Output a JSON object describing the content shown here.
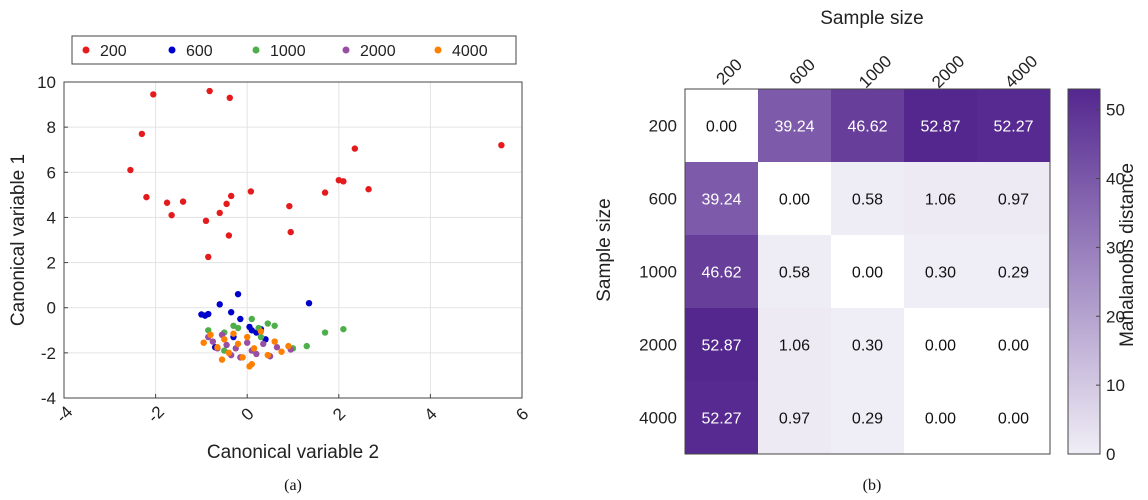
{
  "chart_data": [
    {
      "type": "scatter",
      "caption": "(a)",
      "xlabel": "Canonical variable 2",
      "ylabel": "Canonical variable 1",
      "xlim": [
        -4,
        6
      ],
      "ylim": [
        -4,
        10
      ],
      "xticks": [
        "-4",
        "-2",
        "0",
        "2",
        "4",
        "6"
      ],
      "yticks": [
        "-4",
        "-2",
        "0",
        "2",
        "4",
        "6",
        "8",
        "10"
      ],
      "grid": true,
      "legend_position": "top",
      "series": [
        {
          "name": "200",
          "color": "#e41a1c",
          "points": [
            [
              -2.55,
              6.1
            ],
            [
              -2.3,
              7.7
            ],
            [
              -2.2,
              4.9
            ],
            [
              -2.05,
              9.45
            ],
            [
              -1.75,
              4.65
            ],
            [
              -1.65,
              4.1
            ],
            [
              -1.4,
              4.7
            ],
            [
              -0.9,
              3.85
            ],
            [
              -0.85,
              2.25
            ],
            [
              -0.82,
              9.6
            ],
            [
              -0.6,
              4.2
            ],
            [
              -0.45,
              4.6
            ],
            [
              -0.4,
              3.2
            ],
            [
              -0.38,
              9.3
            ],
            [
              -0.35,
              4.95
            ],
            [
              0.08,
              5.15
            ],
            [
              0.92,
              4.5
            ],
            [
              0.95,
              3.35
            ],
            [
              1.7,
              5.1
            ],
            [
              2.0,
              5.65
            ],
            [
              2.1,
              5.6
            ],
            [
              2.35,
              7.05
            ],
            [
              2.65,
              5.25
            ],
            [
              5.55,
              7.2
            ]
          ]
        },
        {
          "name": "600",
          "color": "#0000cc",
          "points": [
            [
              -1.0,
              -0.3
            ],
            [
              -0.92,
              -0.35
            ],
            [
              -0.85,
              -0.28
            ],
            [
              -0.6,
              0.15
            ],
            [
              -0.35,
              -0.2
            ],
            [
              -0.2,
              0.6
            ],
            [
              -0.15,
              -0.5
            ],
            [
              0.05,
              -0.85
            ],
            [
              0.1,
              -1.0
            ],
            [
              0.2,
              -1.1
            ],
            [
              0.3,
              -0.95
            ],
            [
              1.35,
              0.2
            ],
            [
              -0.7,
              -1.75
            ],
            [
              -0.3,
              -1.3
            ],
            [
              0.4,
              -1.4
            ]
          ]
        },
        {
          "name": "1000",
          "color": "#4daf4a",
          "points": [
            [
              -0.85,
              -1.0
            ],
            [
              -0.5,
              -1.1
            ],
            [
              -0.3,
              -0.8
            ],
            [
              -0.2,
              -0.9
            ],
            [
              0.1,
              -0.5
            ],
            [
              0.25,
              -0.9
            ],
            [
              0.45,
              -0.7
            ],
            [
              0.6,
              -0.8
            ],
            [
              1.0,
              -1.8
            ],
            [
              1.3,
              -1.7
            ],
            [
              1.7,
              -1.1
            ],
            [
              2.1,
              -0.95
            ],
            [
              -0.5,
              -1.9
            ],
            [
              0.3,
              -1.3
            ]
          ]
        },
        {
          "name": "2000",
          "color": "#984ea3",
          "points": [
            [
              -0.85,
              -1.3
            ],
            [
              -0.75,
              -1.5
            ],
            [
              -0.55,
              -1.2
            ],
            [
              -0.45,
              -1.65
            ],
            [
              -0.35,
              -2.1
            ],
            [
              -0.25,
              -1.8
            ],
            [
              -0.15,
              -2.2
            ],
            [
              0.0,
              -1.55
            ],
            [
              0.1,
              -1.9
            ],
            [
              0.2,
              -2.05
            ],
            [
              0.35,
              -1.6
            ],
            [
              0.5,
              -2.15
            ],
            [
              0.65,
              -1.75
            ],
            [
              0.95,
              -1.85
            ],
            [
              -0.65,
              -1.8
            ]
          ]
        },
        {
          "name": "4000",
          "color": "#ff7f00",
          "points": [
            [
              -0.95,
              -1.55
            ],
            [
              -0.8,
              -1.2
            ],
            [
              -0.65,
              -1.75
            ],
            [
              -0.5,
              -1.4
            ],
            [
              -0.4,
              -2.0
            ],
            [
              -0.3,
              -1.15
            ],
            [
              -0.2,
              -1.6
            ],
            [
              -0.1,
              -2.2
            ],
            [
              0.0,
              -1.3
            ],
            [
              0.05,
              -2.6
            ],
            [
              0.15,
              -1.8
            ],
            [
              0.3,
              -1.05
            ],
            [
              0.45,
              -2.1
            ],
            [
              0.6,
              -1.5
            ],
            [
              0.75,
              -1.95
            ],
            [
              0.9,
              -1.7
            ],
            [
              -0.55,
              -2.3
            ],
            [
              0.1,
              -2.5
            ]
          ]
        }
      ]
    },
    {
      "type": "heatmap",
      "caption": "(b)",
      "title": "Sample size",
      "ylabel": "Sample size",
      "colorbar_label": "Mahalanobis distance",
      "colorbar_ticks": [
        "0",
        "10",
        "20",
        "30",
        "40",
        "50"
      ],
      "colorbar_range": [
        0,
        53
      ],
      "x_categories": [
        "200",
        "600",
        "1000",
        "2000",
        "4000"
      ],
      "y_categories": [
        "200",
        "600",
        "1000",
        "2000",
        "4000"
      ],
      "values": [
        [
          "0.00",
          "39.24",
          "46.62",
          "52.87",
          "52.27"
        ],
        [
          "39.24",
          "0.00",
          "0.58",
          "1.06",
          "0.97"
        ],
        [
          "46.62",
          "0.58",
          "0.00",
          "0.30",
          "0.29"
        ],
        [
          "52.87",
          "1.06",
          "0.30",
          "0.00",
          "0.00"
        ],
        [
          "52.27",
          "0.97",
          "0.29",
          "0.00",
          "0.00"
        ]
      ]
    }
  ]
}
